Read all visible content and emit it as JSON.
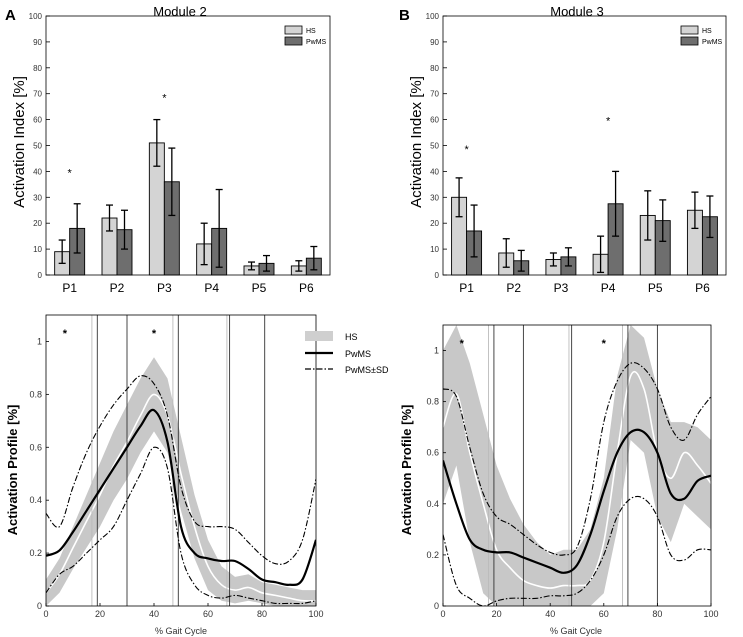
{
  "colors": {
    "hs": "#d4d4d4",
    "pwms": "#6e6e6e",
    "band": "#c8c8c8",
    "border": "#000000"
  },
  "panel_letters": [
    "A",
    "B"
  ],
  "chart_data": [
    {
      "type": "bar",
      "title": "Module 2",
      "ylabel": "Activation Index [%]",
      "ylim": [
        0,
        100
      ],
      "yticks": [
        0,
        10,
        20,
        30,
        40,
        50,
        60,
        70,
        80,
        90,
        100
      ],
      "categories": [
        "P1",
        "P2",
        "P3",
        "P4",
        "P5",
        "P6"
      ],
      "series": [
        {
          "name": "HS",
          "values": [
            9,
            22,
            51,
            12,
            3.5,
            3.5
          ],
          "errors": [
            4.5,
            5,
            9,
            8,
            1.5,
            2
          ]
        },
        {
          "name": "PwMS",
          "values": [
            18,
            17.5,
            36,
            18,
            4.5,
            6.5
          ],
          "errors": [
            9.5,
            7.5,
            13,
            15,
            3,
            4.5
          ]
        }
      ],
      "annotations": [
        {
          "text": "*",
          "category": "P1",
          "y": 40
        },
        {
          "text": "*",
          "category": "P3",
          "y": 69
        }
      ],
      "legend": "top-right"
    },
    {
      "type": "bar",
      "title": "Module 3",
      "ylabel": "Activation Index [%]",
      "ylim": [
        0,
        100
      ],
      "yticks": [
        0,
        10,
        20,
        30,
        40,
        50,
        60,
        70,
        80,
        90,
        100
      ],
      "categories": [
        "P1",
        "P2",
        "P3",
        "P4",
        "P5",
        "P6"
      ],
      "series": [
        {
          "name": "HS",
          "values": [
            30,
            8.5,
            6,
            8,
            23,
            25
          ],
          "errors": [
            7.5,
            5.5,
            2.5,
            7,
            9.5,
            7
          ]
        },
        {
          "name": "PwMS",
          "values": [
            17,
            5.5,
            7,
            27.5,
            21,
            22.5
          ],
          "errors": [
            10,
            4,
            3.5,
            12.5,
            8,
            8
          ]
        }
      ],
      "annotations": [
        {
          "text": "*",
          "category": "P1",
          "y": 49
        },
        {
          "text": "*",
          "category": "P4",
          "y": 60
        }
      ],
      "legend": "top-right"
    },
    {
      "type": "line",
      "ylabel": "Activation Profile [%]",
      "xlabel": "% Gait Cycle",
      "xlim": [
        0,
        100
      ],
      "ylim": [
        0,
        1.1
      ],
      "xticks": [
        0,
        20,
        40,
        60,
        80,
        100
      ],
      "yticks": [
        0,
        0.2,
        0.4,
        0.6,
        0.8,
        1
      ],
      "legend": [
        "HS",
        "PwMS",
        "PwMS±SD"
      ],
      "star_x": [
        7,
        40
      ],
      "vlines_thin": [
        17,
        47,
        67
      ],
      "vlines_thick": [
        19,
        30,
        49,
        68,
        81
      ],
      "x": [
        0,
        5,
        10,
        15,
        20,
        25,
        30,
        35,
        40,
        45,
        50,
        55,
        60,
        65,
        70,
        75,
        80,
        85,
        90,
        95,
        100
      ],
      "hs_mean": [
        0.05,
        0.12,
        0.22,
        0.32,
        0.42,
        0.53,
        0.62,
        0.72,
        0.8,
        0.72,
        0.5,
        0.3,
        0.15,
        0.08,
        0.06,
        0.07,
        0.05,
        0.04,
        0.03,
        0.02,
        0.02
      ],
      "hs_upper": [
        0.1,
        0.18,
        0.3,
        0.42,
        0.54,
        0.66,
        0.76,
        0.86,
        0.94,
        0.86,
        0.64,
        0.42,
        0.25,
        0.15,
        0.11,
        0.12,
        0.09,
        0.08,
        0.07,
        0.06,
        0.06
      ],
      "hs_lower": [
        0.0,
        0.05,
        0.14,
        0.22,
        0.3,
        0.4,
        0.48,
        0.58,
        0.66,
        0.58,
        0.36,
        0.18,
        0.06,
        0.02,
        0.01,
        0.02,
        0.01,
        0.0,
        0.0,
        0.0,
        0.0
      ],
      "pwms_mean": [
        0.19,
        0.21,
        0.28,
        0.36,
        0.44,
        0.52,
        0.6,
        0.68,
        0.74,
        0.62,
        0.3,
        0.2,
        0.18,
        0.17,
        0.17,
        0.14,
        0.1,
        0.09,
        0.08,
        0.1,
        0.25
      ],
      "pwms_upper": [
        0.35,
        0.3,
        0.45,
        0.58,
        0.68,
        0.76,
        0.82,
        0.87,
        0.84,
        0.72,
        0.45,
        0.32,
        0.3,
        0.3,
        0.29,
        0.24,
        0.19,
        0.16,
        0.17,
        0.25,
        0.48
      ],
      "pwms_lower": [
        0.05,
        0.12,
        0.15,
        0.2,
        0.25,
        0.3,
        0.4,
        0.5,
        0.6,
        0.52,
        0.2,
        0.08,
        0.04,
        0.03,
        0.04,
        0.03,
        0.02,
        0.01,
        0.01,
        0.01,
        0.02
      ]
    },
    {
      "type": "line",
      "ylabel": "Activation Profile [%]",
      "xlabel": "% Gait Cycle",
      "xlim": [
        0,
        100
      ],
      "ylim": [
        0,
        1.1
      ],
      "xticks": [
        0,
        20,
        40,
        60,
        80,
        100
      ],
      "yticks": [
        0,
        0.2,
        0.4,
        0.6,
        0.8,
        1
      ],
      "star_x": [
        7,
        60
      ],
      "vlines_thin": [
        17,
        47,
        67
      ],
      "vlines_thick": [
        19,
        30,
        48,
        69,
        80
      ],
      "x": [
        0,
        5,
        10,
        15,
        20,
        25,
        30,
        35,
        40,
        45,
        50,
        55,
        60,
        65,
        70,
        75,
        80,
        85,
        90,
        95,
        100
      ],
      "hs_mean": [
        0.7,
        0.83,
        0.6,
        0.4,
        0.22,
        0.15,
        0.1,
        0.08,
        0.07,
        0.08,
        0.08,
        0.1,
        0.25,
        0.6,
        0.9,
        0.85,
        0.6,
        0.5,
        0.6,
        0.55,
        0.48
      ],
      "hs_upper": [
        1.0,
        1.1,
        0.95,
        0.75,
        0.55,
        0.42,
        0.32,
        0.25,
        0.2,
        0.22,
        0.22,
        0.3,
        0.5,
        0.9,
        1.1,
        1.05,
        0.85,
        0.72,
        0.72,
        0.7,
        0.65
      ],
      "hs_lower": [
        0.4,
        0.55,
        0.25,
        0.05,
        0.0,
        0.0,
        0.0,
        0.0,
        0.0,
        0.0,
        0.0,
        0.0,
        0.05,
        0.3,
        0.65,
        0.6,
        0.35,
        0.25,
        0.4,
        0.35,
        0.3
      ],
      "pwms_mean": [
        0.57,
        0.4,
        0.26,
        0.22,
        0.21,
        0.21,
        0.19,
        0.17,
        0.15,
        0.13,
        0.16,
        0.28,
        0.45,
        0.6,
        0.68,
        0.68,
        0.6,
        0.44,
        0.42,
        0.49,
        0.51
      ],
      "pwms_upper": [
        0.85,
        0.82,
        0.62,
        0.44,
        0.35,
        0.32,
        0.28,
        0.24,
        0.21,
        0.2,
        0.23,
        0.42,
        0.72,
        0.88,
        0.95,
        0.93,
        0.85,
        0.7,
        0.65,
        0.75,
        0.82
      ],
      "pwms_lower": [
        0.28,
        0.08,
        0.03,
        0.0,
        0.02,
        0.03,
        0.03,
        0.03,
        0.04,
        0.04,
        0.05,
        0.1,
        0.2,
        0.35,
        0.42,
        0.42,
        0.35,
        0.2,
        0.18,
        0.22,
        0.22
      ]
    }
  ]
}
